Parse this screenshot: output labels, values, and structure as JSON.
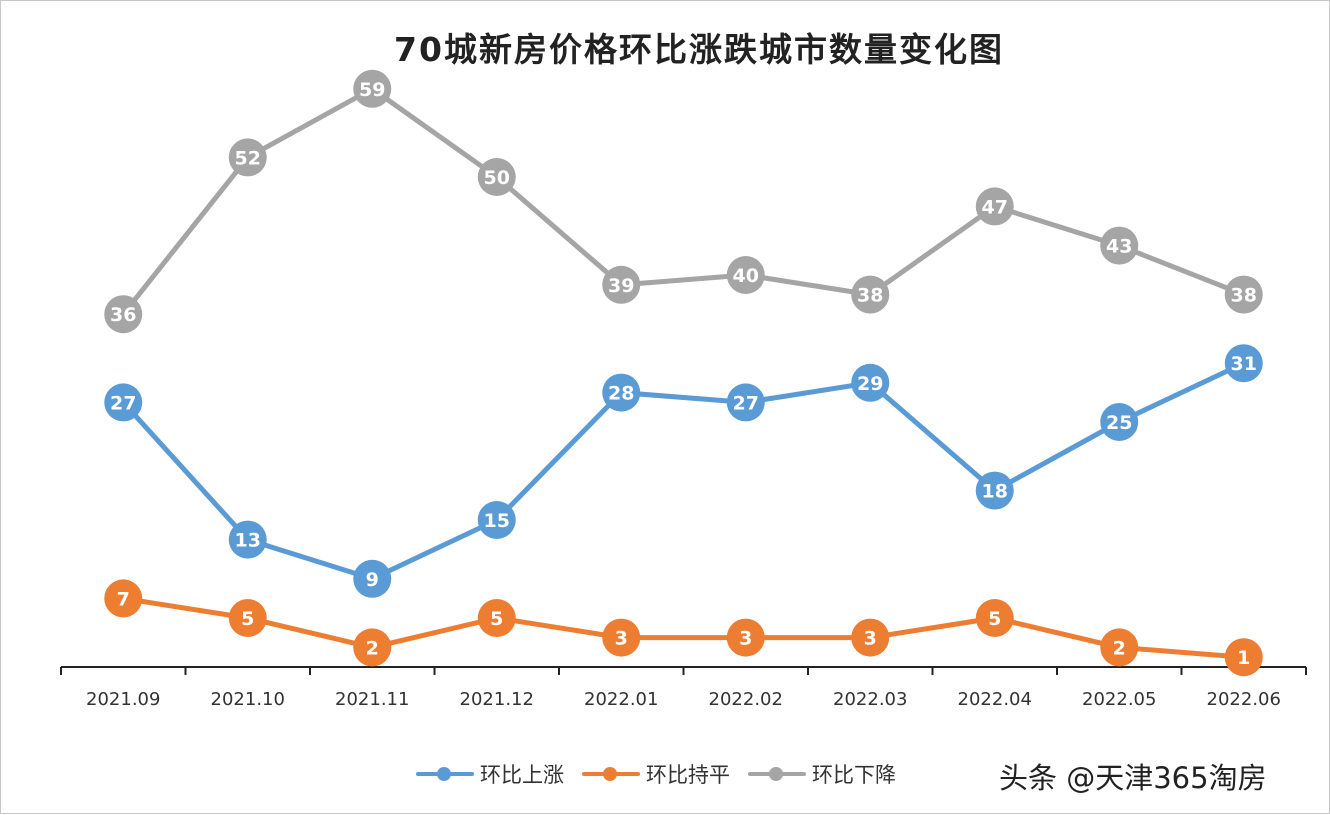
{
  "chart_data": {
    "type": "line",
    "title": "70城新房价格环比涨跌城市数量变化图",
    "categories": [
      "2021.09",
      "2021.10",
      "2021.11",
      "2021.12",
      "2022.01",
      "2022.02",
      "2022.03",
      "2022.04",
      "2022.05",
      "2022.06"
    ],
    "series": [
      {
        "name": "环比上涨",
        "color": "#5b9bd5",
        "values": [
          27,
          13,
          9,
          15,
          28,
          27,
          29,
          18,
          25,
          31
        ]
      },
      {
        "name": "环比持平",
        "color": "#ed7d31",
        "values": [
          7,
          5,
          2,
          5,
          3,
          3,
          3,
          5,
          2,
          1
        ]
      },
      {
        "name": "环比下降",
        "color": "#a5a5a5",
        "values": [
          36,
          52,
          59,
          50,
          39,
          40,
          38,
          47,
          43,
          38
        ]
      }
    ],
    "xlabel": "",
    "ylabel": "",
    "ylim": [
      0,
      61
    ],
    "grid": false,
    "data_labels": true,
    "legend_position": "bottom"
  },
  "watermark": "头条 @天津365淘房"
}
